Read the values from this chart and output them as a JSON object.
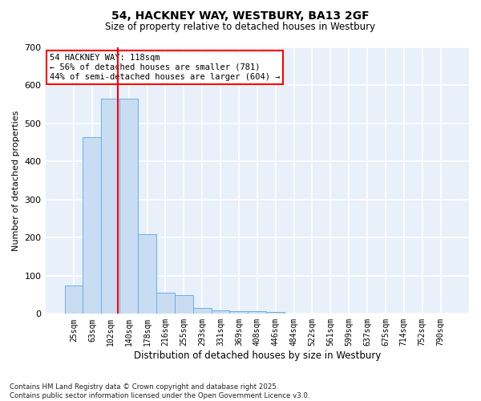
{
  "title1": "54, HACKNEY WAY, WESTBURY, BA13 2GF",
  "title2": "Size of property relative to detached houses in Westbury",
  "xlabel": "Distribution of detached houses by size in Westbury",
  "ylabel": "Number of detached properties",
  "bar_labels": [
    "25sqm",
    "63sqm",
    "102sqm",
    "140sqm",
    "178sqm",
    "216sqm",
    "255sqm",
    "293sqm",
    "331sqm",
    "369sqm",
    "408sqm",
    "446sqm",
    "484sqm",
    "522sqm",
    "561sqm",
    "599sqm",
    "637sqm",
    "675sqm",
    "714sqm",
    "752sqm",
    "790sqm"
  ],
  "bar_values": [
    75,
    465,
    565,
    565,
    210,
    55,
    50,
    15,
    10,
    8,
    8,
    5,
    0,
    0,
    0,
    0,
    0,
    0,
    0,
    0,
    0
  ],
  "bar_color": "#c9ddf2",
  "bar_edgecolor": "#6aaee8",
  "background_color": "#e8f0fa",
  "grid_color": "#ffffff",
  "annotation_text": "54 HACKNEY WAY: 118sqm\n← 56% of detached houses are smaller (781)\n44% of semi-detached houses are larger (604) →",
  "redline_x": 2.42,
  "ylim": [
    0,
    700
  ],
  "yticks": [
    0,
    100,
    200,
    300,
    400,
    500,
    600,
    700
  ],
  "fig_width": 6.0,
  "fig_height": 5.0,
  "footnote1": "Contains HM Land Registry data © Crown copyright and database right 2025.",
  "footnote2": "Contains public sector information licensed under the Open Government Licence v3.0."
}
